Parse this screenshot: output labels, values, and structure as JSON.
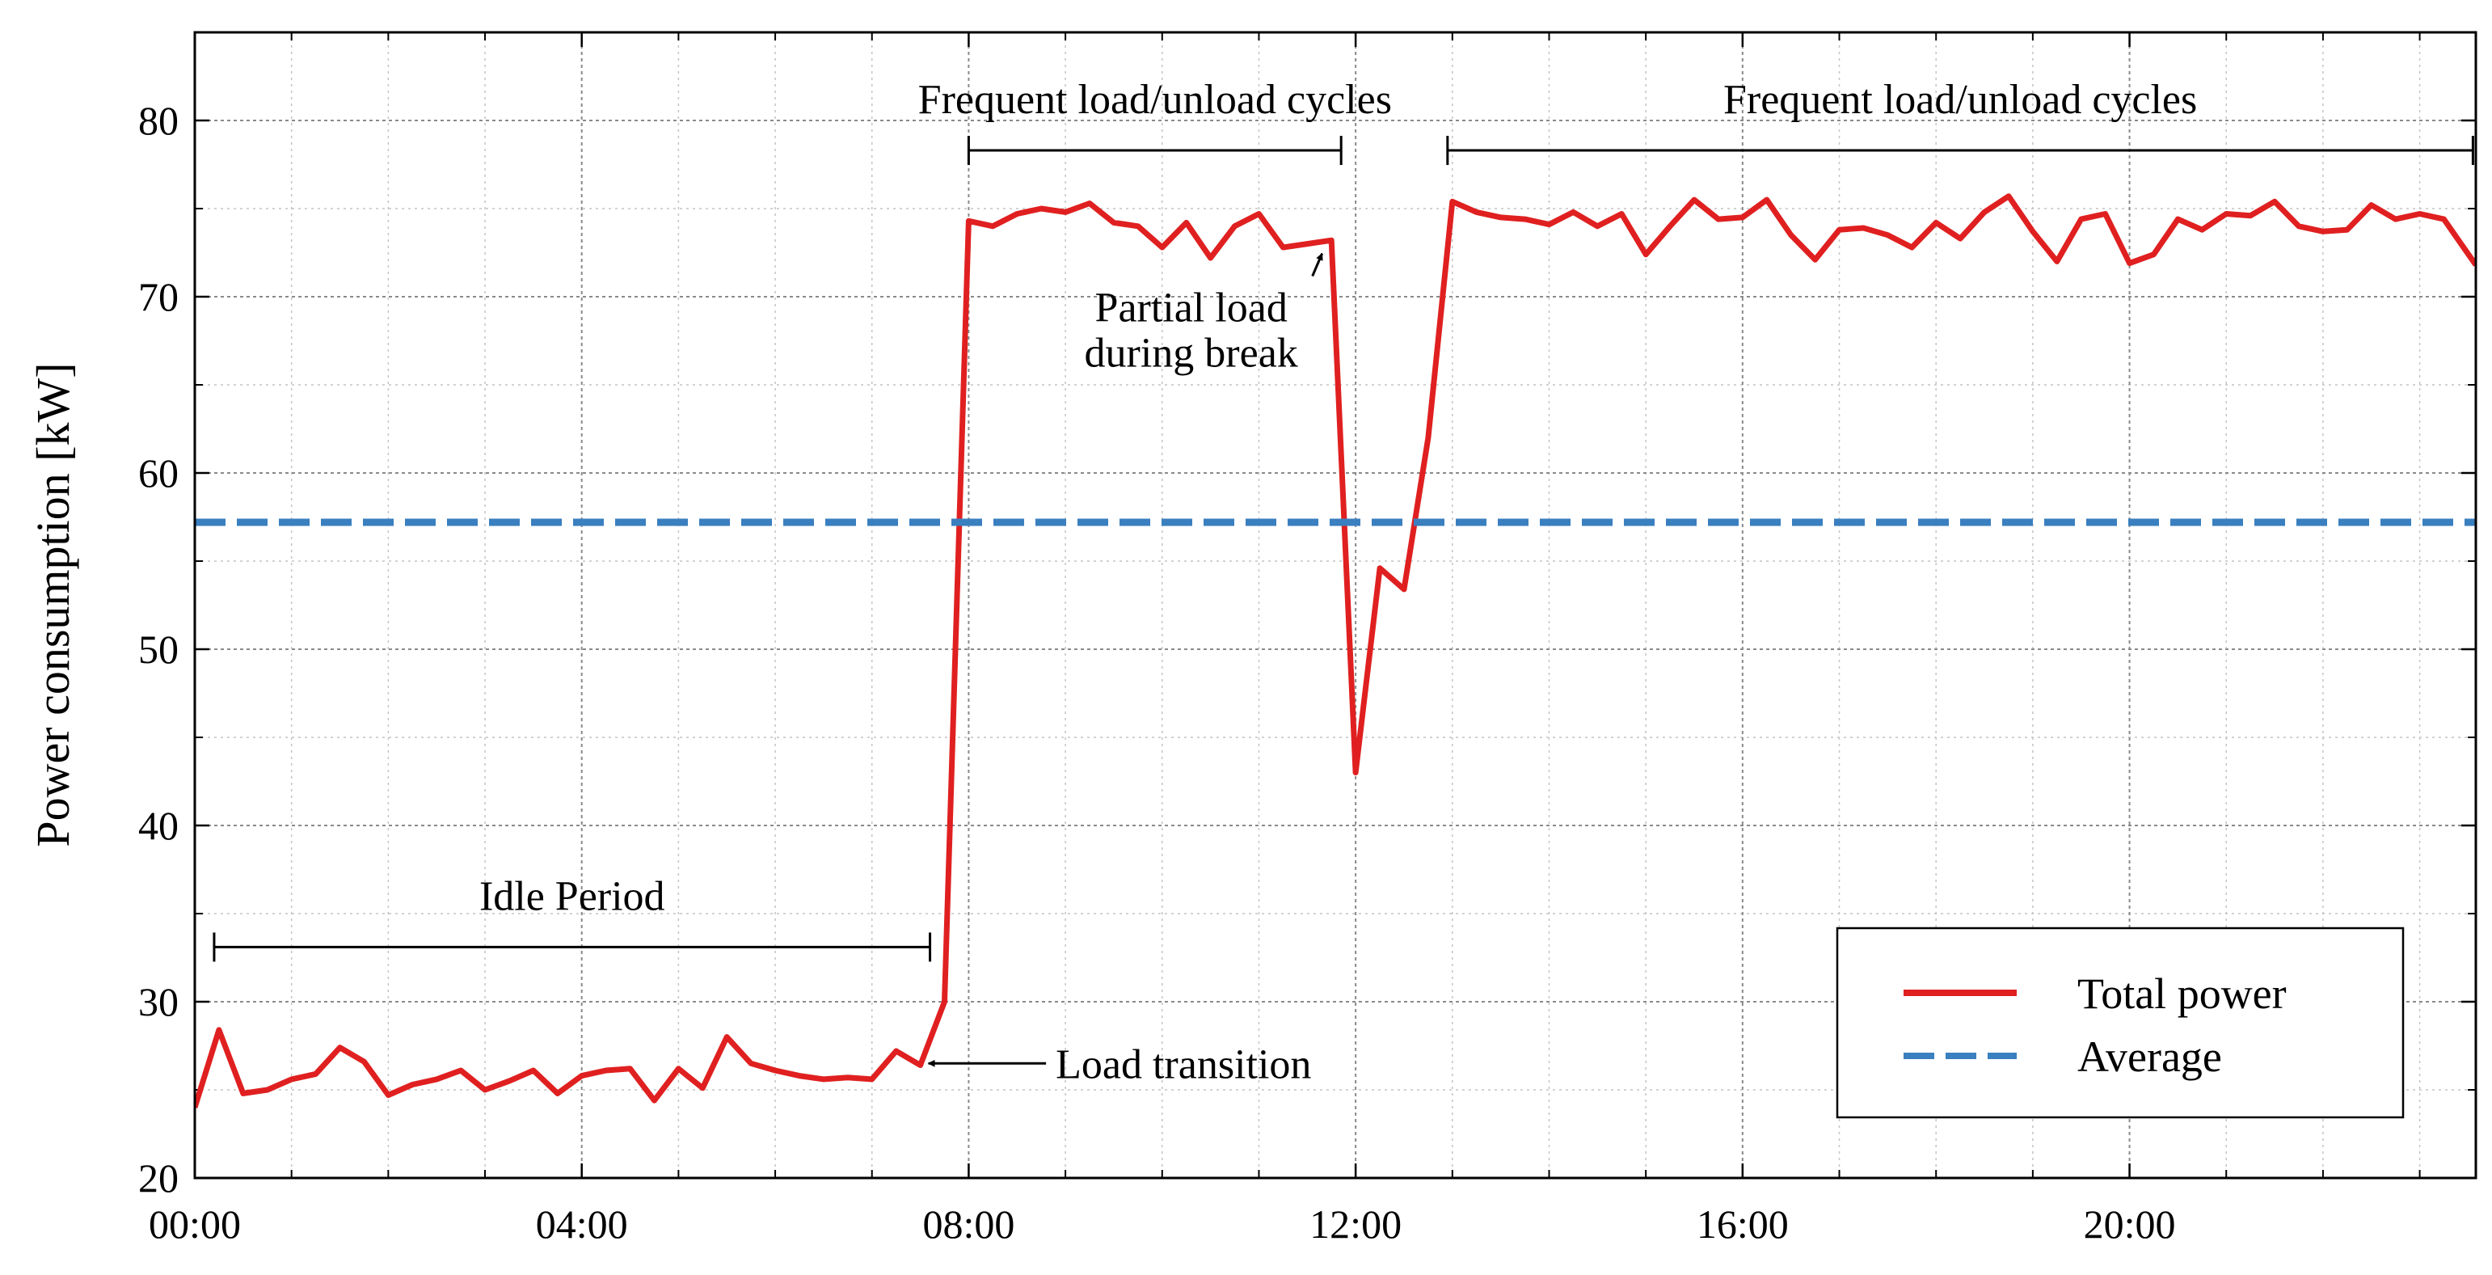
{
  "chart_data": {
    "type": "line",
    "title": "",
    "xlabel": "",
    "ylabel": "Power consumption [kW]",
    "xlim": [
      0,
      23.58
    ],
    "ylim": [
      20,
      85
    ],
    "grid": true,
    "legend_position": "bottom-right",
    "x_ticks": [
      {
        "value": 0,
        "label": "00:00"
      },
      {
        "value": 4,
        "label": "04:00"
      },
      {
        "value": 8,
        "label": "08:00"
      },
      {
        "value": 12,
        "label": "12:00"
      },
      {
        "value": 16,
        "label": "16:00"
      },
      {
        "value": 20,
        "label": "20:00"
      }
    ],
    "y_ticks": [
      {
        "value": 20,
        "label": "20"
      },
      {
        "value": 30,
        "label": "30"
      },
      {
        "value": 40,
        "label": "40"
      },
      {
        "value": 50,
        "label": "50"
      },
      {
        "value": 60,
        "label": "60"
      },
      {
        "value": 70,
        "label": "70"
      },
      {
        "value": 80,
        "label": "80"
      }
    ],
    "series": [
      {
        "name": "Total power",
        "color": "#e02020",
        "style": "solid",
        "x": [
          0,
          0.25,
          0.5,
          0.75,
          1.0,
          1.25,
          1.5,
          1.75,
          2.0,
          2.25,
          2.5,
          2.75,
          3.0,
          3.25,
          3.5,
          3.75,
          4.0,
          4.25,
          4.5,
          4.75,
          5.0,
          5.25,
          5.5,
          5.75,
          6.0,
          6.25,
          6.5,
          6.75,
          7.0,
          7.25,
          7.5,
          7.75,
          8.0,
          8.25,
          8.5,
          8.75,
          9.0,
          9.25,
          9.5,
          9.75,
          10.0,
          10.25,
          10.5,
          10.75,
          11.0,
          11.25,
          11.5,
          11.75,
          12.0,
          12.25,
          12.5,
          12.75,
          13.0,
          13.25,
          13.5,
          13.75,
          14.0,
          14.25,
          14.5,
          14.75,
          15.0,
          15.25,
          15.5,
          15.75,
          16.0,
          16.25,
          16.5,
          16.75,
          17.0,
          17.25,
          17.5,
          17.75,
          18.0,
          18.25,
          18.5,
          18.75,
          19.0,
          19.25,
          19.5,
          19.75,
          20.0,
          20.25,
          20.5,
          20.75,
          21.0,
          21.25,
          21.5,
          21.75,
          22.0,
          22.25,
          22.5,
          22.75,
          23.0,
          23.25,
          23.58
        ],
        "values": [
          24.0,
          28.4,
          24.8,
          25.0,
          25.6,
          25.9,
          27.4,
          26.6,
          24.7,
          25.3,
          25.6,
          26.1,
          25.0,
          25.5,
          26.1,
          24.8,
          25.8,
          26.1,
          26.2,
          24.4,
          26.2,
          25.1,
          28.0,
          26.5,
          26.1,
          25.8,
          25.6,
          25.7,
          25.6,
          27.2,
          26.4,
          30.0,
          74.3,
          74.0,
          74.7,
          75.0,
          74.8,
          75.3,
          74.2,
          74.0,
          72.8,
          74.2,
          72.2,
          74.0,
          74.7,
          72.8,
          73.0,
          73.2,
          43.0,
          54.6,
          53.4,
          62.0,
          75.4,
          74.8,
          74.5,
          74.4,
          74.1,
          74.8,
          74.0,
          74.7,
          72.4,
          74.0,
          75.5,
          74.4,
          74.5,
          75.5,
          73.5,
          72.1,
          73.8,
          73.9,
          73.5,
          72.8,
          74.2,
          73.3,
          74.8,
          75.7,
          73.7,
          72.0,
          74.4,
          74.7,
          71.9,
          72.4,
          74.4,
          73.8,
          74.7,
          74.6,
          75.4,
          74.0,
          73.7,
          73.8,
          75.2,
          74.4,
          74.7,
          74.4,
          71.8
        ]
      },
      {
        "name": "Average",
        "color": "#3a7fbf",
        "style": "dashed",
        "x": [
          0,
          23.58
        ],
        "values": [
          57.2,
          57.2
        ]
      }
    ],
    "annotations": [
      {
        "id": "idle",
        "text": "Idle Period",
        "type": "bracket",
        "x_start": 0.2,
        "x_end": 7.6,
        "y": 33.1
      },
      {
        "id": "cycles1",
        "text": "Frequent load/unload cycles",
        "type": "bracket",
        "x_start": 8.0,
        "x_end": 11.85,
        "y": 78.3
      },
      {
        "id": "cycles2",
        "text": "Frequent load/unload cycles",
        "type": "bracket",
        "x_start": 12.95,
        "x_end": 23.55,
        "y": 78.3
      },
      {
        "id": "transition",
        "text": "Load transition",
        "type": "arrow",
        "target_x": 7.5,
        "target_y": 26.5,
        "text_x": 8.9,
        "text_y": 26.5
      },
      {
        "id": "partial",
        "text_lines": [
          "Partial load",
          "during break"
        ],
        "type": "arrow",
        "target_x": 11.72,
        "target_y": 73.0,
        "text_x": 10.3,
        "text_y": 68.6
      }
    ]
  }
}
